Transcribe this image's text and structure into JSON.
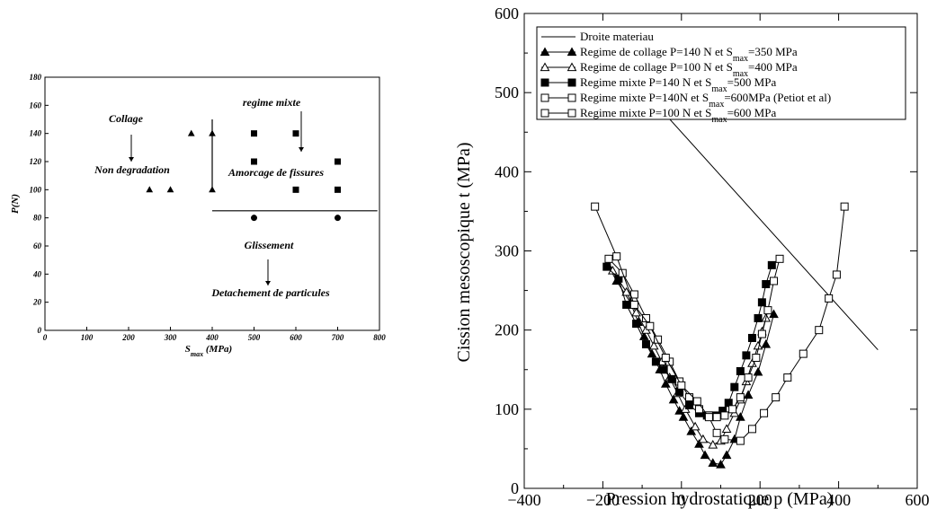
{
  "chart_data": [
    {
      "type": "scatter",
      "xlabel": "S",
      "xlabel_sub": "max",
      "xlabel_unit": " (MPa)",
      "ylabel": "P(N)",
      "xlim": [
        0,
        800
      ],
      "ylim": [
        0,
        180
      ],
      "xticks": [
        0,
        100,
        200,
        300,
        400,
        500,
        600,
        700,
        800
      ],
      "yticks": [
        0,
        20,
        40,
        60,
        80,
        100,
        120,
        140,
        160,
        180
      ],
      "grid": false,
      "series": [
        {
          "marker": "triangle",
          "x": [
            250,
            300,
            350,
            400,
            400
          ],
          "y": [
            100,
            100,
            140,
            140,
            100
          ]
        },
        {
          "marker": "square",
          "x": [
            500,
            500,
            600,
            600,
            700,
            700
          ],
          "y": [
            140,
            120,
            140,
            100,
            120,
            100
          ]
        },
        {
          "marker": "circle",
          "x": [
            500,
            700
          ],
          "y": [
            80,
            80
          ]
        }
      ],
      "lines": [
        {
          "x": [
            400,
            400
          ],
          "y": [
            100,
            150
          ]
        },
        {
          "x": [
            400,
            795
          ],
          "y": [
            85,
            85
          ]
        }
      ],
      "annotations": {
        "collage": "Collage",
        "non_degradation": "Non degradation",
        "regime_mixte": "regime mixte",
        "amorcage": "Amorcage de fissures",
        "glissement": "Glissement",
        "detachement": "Detachement de particules"
      }
    },
    {
      "type": "line",
      "xlabel": "Pression hydrostatique p (MPa)",
      "ylabel": "Cission mesoscopique t (MPa)",
      "xlim": [
        -400,
        600
      ],
      "ylim": [
        0,
        600
      ],
      "xticks": [
        -400,
        -200,
        0,
        200,
        400,
        600
      ],
      "yticks": [
        0,
        100,
        200,
        300,
        400,
        500,
        600
      ],
      "xtick_labels": [
        "−400",
        "−200",
        "0",
        "200",
        "400",
        "600"
      ],
      "grid": false,
      "legend_position": "top-right",
      "material_line": {
        "legend": "Droite materiau",
        "x": [
          -200,
          500
        ],
        "y": [
          560,
          175
        ]
      },
      "series": [
        {
          "legend": [
            "Regime de collage P=140 N et S",
            "max",
            "=350 MPa"
          ],
          "marker": "triangle",
          "filled": true,
          "x": [
            -185,
            -165,
            -130,
            -110,
            -95,
            -75,
            -55,
            -40,
            -20,
            -5,
            5,
            25,
            45,
            60,
            80,
            100,
            115,
            135,
            150,
            170,
            195,
            215,
            235
          ],
          "y": [
            280,
            262,
            235,
            210,
            192,
            170,
            150,
            132,
            112,
            98,
            90,
            72,
            56,
            42,
            32,
            30,
            42,
            62,
            90,
            118,
            147,
            182,
            220
          ]
        },
        {
          "legend": [
            "Regime de collage P=100 N et S",
            "max",
            "=400 MPa"
          ],
          "marker": "triangle",
          "filled": false,
          "x": [
            -175,
            -140,
            -115,
            -90,
            -70,
            -50,
            -30,
            -10,
            10,
            35,
            55,
            80,
            100,
            115,
            135,
            150,
            165,
            180,
            195,
            205,
            215
          ],
          "y": [
            275,
            248,
            222,
            200,
            180,
            160,
            140,
            120,
            100,
            78,
            62,
            55,
            60,
            75,
            95,
            112,
            135,
            158,
            180,
            198,
            215
          ]
        },
        {
          "legend": [
            "Regime mixte P=140 N et S",
            "max",
            "=500 MPa"
          ],
          "marker": "square",
          "filled": true,
          "x": [
            -190,
            -160,
            -140,
            -115,
            -90,
            -65,
            -45,
            -25,
            -5,
            20,
            45,
            65,
            85,
            105,
            120,
            135,
            150,
            165,
            180,
            195,
            205,
            215,
            230
          ],
          "y": [
            280,
            265,
            232,
            208,
            182,
            160,
            150,
            138,
            122,
            105,
            95,
            92,
            92,
            98,
            108,
            128,
            148,
            168,
            190,
            215,
            235,
            258,
            282
          ]
        },
        {
          "legend": [
            "Regime mixte P=140N et S",
            "max",
            "=600MPa (Petiot et al)"
          ],
          "marker": "square",
          "filled": false,
          "x": [
            -185,
            -150,
            -120,
            -90,
            -60,
            -30,
            -5,
            20,
            45,
            70,
            90,
            110,
            130,
            150,
            170,
            190,
            205,
            220,
            235,
            250
          ],
          "y": [
            290,
            272,
            245,
            215,
            188,
            160,
            135,
            115,
            100,
            92,
            90,
            92,
            100,
            115,
            140,
            165,
            195,
            225,
            262,
            290
          ]
        },
        {
          "legend": [
            "Regime mixte P=100 N et S",
            "max",
            "=600 MPa"
          ],
          "marker": "square",
          "filled": false,
          "x": [
            -220,
            -165,
            -120,
            -80,
            -40,
            0,
            40,
            70,
            90,
            110,
            150,
            180,
            210,
            240,
            270,
            310,
            350,
            375,
            395,
            415
          ],
          "y": [
            356,
            293,
            232,
            205,
            165,
            130,
            110,
            90,
            70,
            62,
            60,
            75,
            95,
            115,
            140,
            170,
            200,
            240,
            270,
            356
          ]
        }
      ]
    }
  ]
}
